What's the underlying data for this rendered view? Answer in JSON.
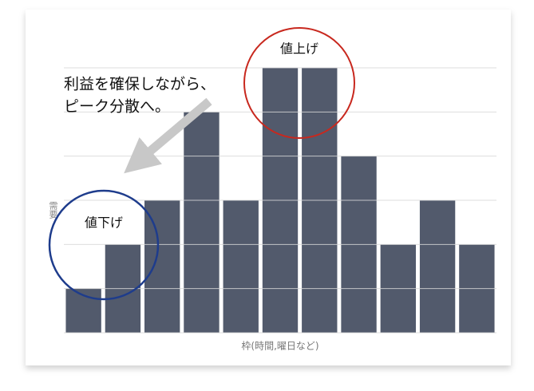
{
  "chart_data": {
    "type": "bar",
    "y_label": "需要",
    "x_label": "枠(時間,曜日など)",
    "annotation_lines": [
      "利益を確保しながら、",
      "ピーク分散へ。"
    ],
    "raise_label": "値上げ",
    "lower_label": "値下げ",
    "categories": [
      null,
      null,
      null,
      null,
      null,
      null,
      null,
      null,
      null,
      null,
      null
    ],
    "values": [
      1,
      2,
      3,
      5,
      3,
      6,
      6,
      4,
      2,
      3,
      2
    ],
    "color": "#525a6c",
    "ylim": [
      0,
      6
    ],
    "yticks": [
      0,
      1,
      2,
      3,
      4,
      5,
      6
    ],
    "grid": true
  }
}
